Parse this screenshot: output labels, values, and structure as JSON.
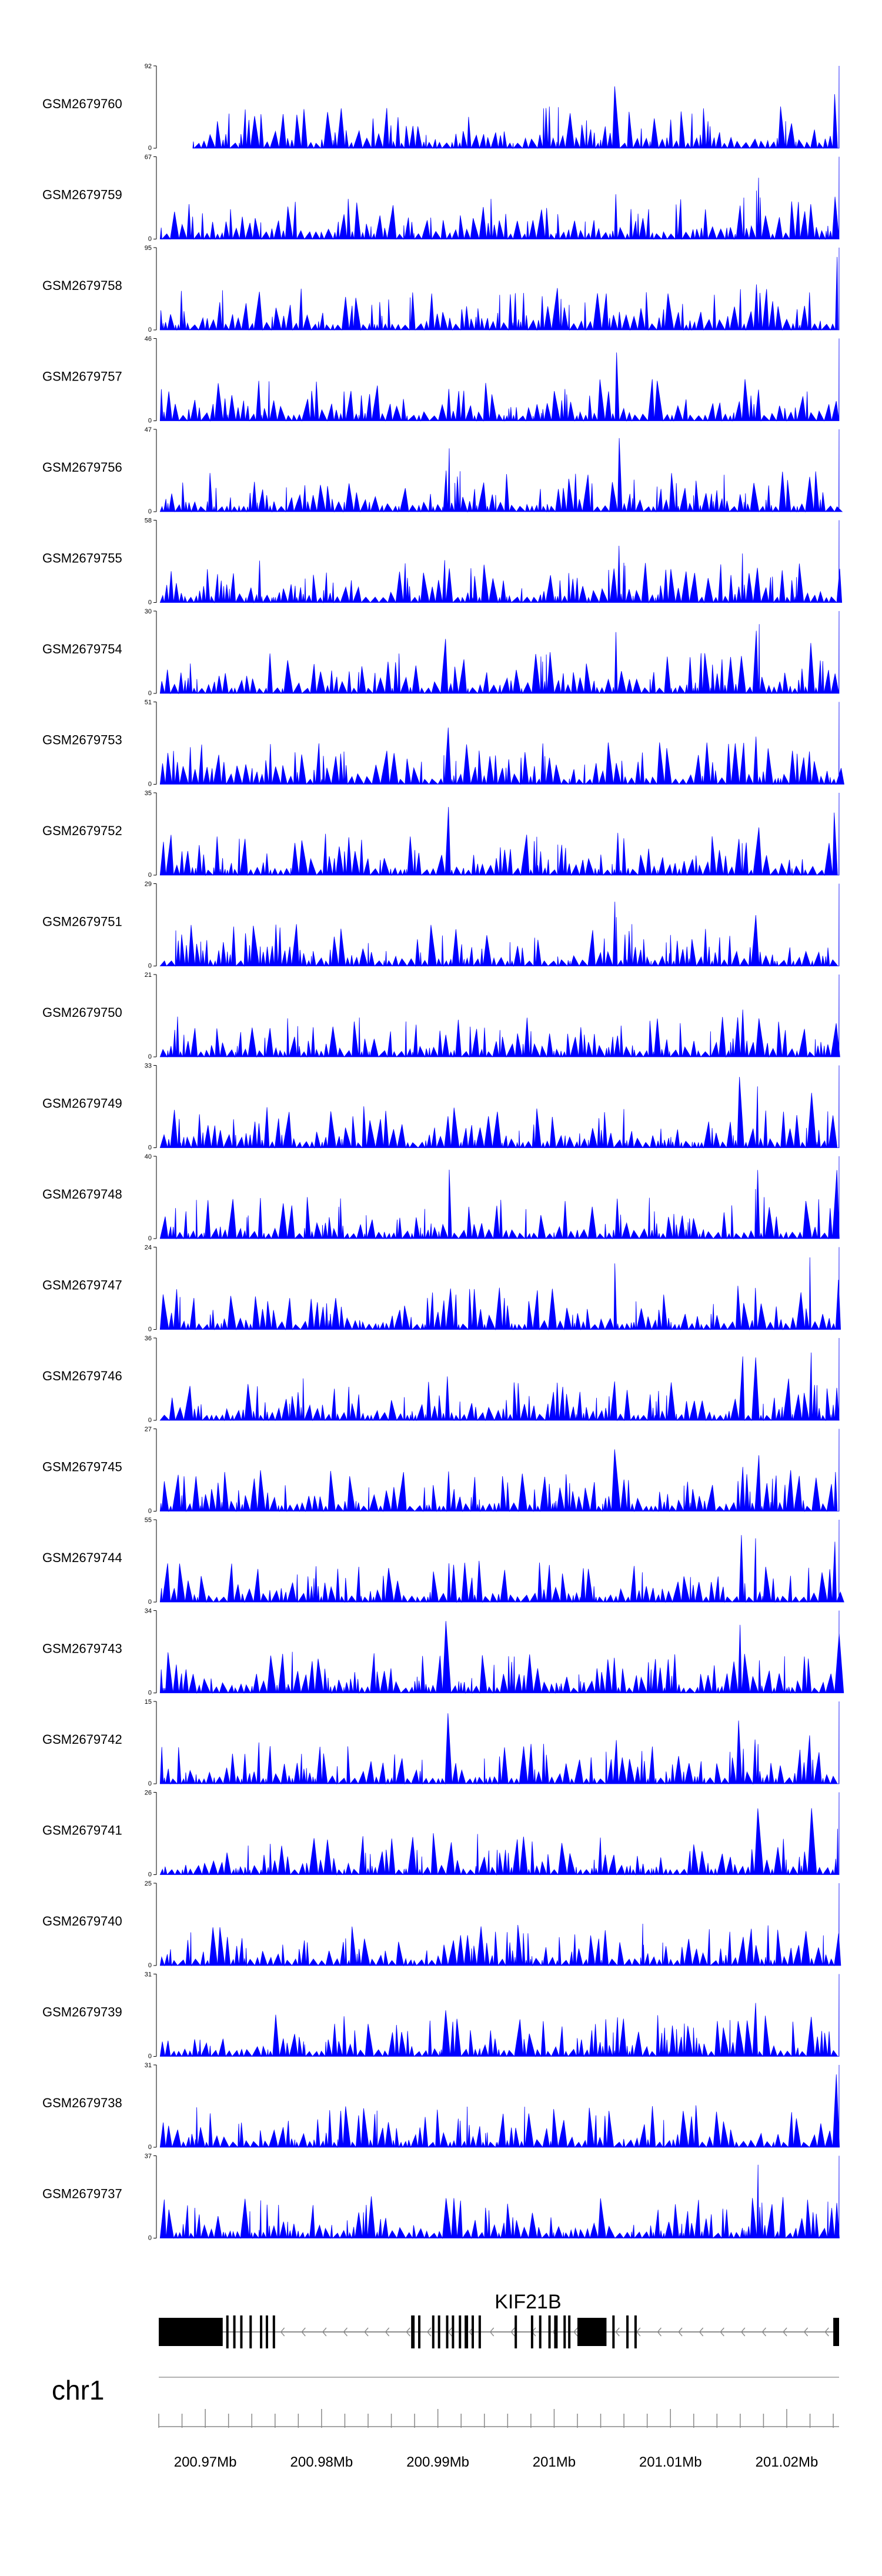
{
  "chart_data": {
    "type": "area",
    "title": "",
    "region": {
      "chromosome": "chr1",
      "start_mb": 200.966,
      "end_mb": 201.0245
    },
    "x_axis": {
      "ticks": [
        {
          "value": 200.97,
          "label": "200.97Mb"
        },
        {
          "value": 200.98,
          "label": "200.98Mb"
        },
        {
          "value": 200.99,
          "label": "200.99Mb"
        },
        {
          "value": 201.0,
          "label": "201Mb"
        },
        {
          "value": 201.01,
          "label": "201.01Mb"
        },
        {
          "value": 201.02,
          "label": "201.02Mb"
        }
      ],
      "minor_step_mb": 0.002
    },
    "fill_color": "#0000ff",
    "tracks": [
      {
        "name": "GSM2679760",
        "ymax": 92,
        "ymin_label": "0"
      },
      {
        "name": "GSM2679759",
        "ymax": 67,
        "ymin_label": "0"
      },
      {
        "name": "GSM2679758",
        "ymax": 95,
        "ymin_label": "0"
      },
      {
        "name": "GSM2679757",
        "ymax": 46,
        "ymin_label": "0"
      },
      {
        "name": "GSM2679756",
        "ymax": 47,
        "ymin_label": "0"
      },
      {
        "name": "GSM2679755",
        "ymax": 58,
        "ymin_label": "0"
      },
      {
        "name": "GSM2679754",
        "ymax": 30,
        "ymin_label": "0"
      },
      {
        "name": "GSM2679753",
        "ymax": 51,
        "ymin_label": "0"
      },
      {
        "name": "GSM2679752",
        "ymax": 35,
        "ymin_label": "0"
      },
      {
        "name": "GSM2679751",
        "ymax": 29,
        "ymin_label": "0"
      },
      {
        "name": "GSM2679750",
        "ymax": 21,
        "ymin_label": "0"
      },
      {
        "name": "GSM2679749",
        "ymax": 33,
        "ymin_label": "0"
      },
      {
        "name": "GSM2679748",
        "ymax": 40,
        "ymin_label": "0"
      },
      {
        "name": "GSM2679747",
        "ymax": 24,
        "ymin_label": "0"
      },
      {
        "name": "GSM2679746",
        "ymax": 36,
        "ymin_label": "0"
      },
      {
        "name": "GSM2679745",
        "ymax": 27,
        "ymin_label": "0"
      },
      {
        "name": "GSM2679744",
        "ymax": 55,
        "ymin_label": "0"
      },
      {
        "name": "GSM2679743",
        "ymax": 34,
        "ymin_label": "0"
      },
      {
        "name": "GSM2679742",
        "ymax": 15,
        "ymin_label": "0"
      },
      {
        "name": "GSM2679741",
        "ymax": 26,
        "ymin_label": "0"
      },
      {
        "name": "GSM2679740",
        "ymax": 25,
        "ymin_label": "0"
      },
      {
        "name": "GSM2679739",
        "ymax": 31,
        "ymin_label": "0"
      },
      {
        "name": "GSM2679738",
        "ymax": 31,
        "ymin_label": "0"
      },
      {
        "name": "GSM2679737",
        "ymax": 37,
        "ymin_label": "0"
      }
    ],
    "gene": {
      "name": "KIF21B",
      "strand": "-",
      "start_mb": 200.966,
      "end_mb": 201.0245,
      "exons": [
        {
          "start": 200.966,
          "end": 200.9715,
          "thick": true
        },
        {
          "start": 200.9718,
          "end": 200.972,
          "thick": false
        },
        {
          "start": 200.9724,
          "end": 200.9726,
          "thick": false
        },
        {
          "start": 200.973,
          "end": 200.9732,
          "thick": false
        },
        {
          "start": 200.9738,
          "end": 200.974,
          "thick": false
        },
        {
          "start": 200.9747,
          "end": 200.9749,
          "thick": false
        },
        {
          "start": 200.9752,
          "end": 200.9754,
          "thick": false
        },
        {
          "start": 200.9758,
          "end": 200.976,
          "thick": false
        },
        {
          "start": 200.9877,
          "end": 200.988,
          "thick": false
        },
        {
          "start": 200.9883,
          "end": 200.9885,
          "thick": false
        },
        {
          "start": 200.9895,
          "end": 200.9897,
          "thick": false
        },
        {
          "start": 200.99,
          "end": 200.9902,
          "thick": false
        },
        {
          "start": 200.9907,
          "end": 200.9909,
          "thick": false
        },
        {
          "start": 200.9912,
          "end": 200.9914,
          "thick": false
        },
        {
          "start": 200.9918,
          "end": 200.992,
          "thick": false
        },
        {
          "start": 200.9923,
          "end": 200.9926,
          "thick": false
        },
        {
          "start": 200.9929,
          "end": 200.9931,
          "thick": false
        },
        {
          "start": 200.9935,
          "end": 200.9937,
          "thick": false
        },
        {
          "start": 200.9966,
          "end": 200.9968,
          "thick": false
        },
        {
          "start": 200.998,
          "end": 200.9982,
          "thick": false
        },
        {
          "start": 200.9987,
          "end": 200.9989,
          "thick": false
        },
        {
          "start": 200.9995,
          "end": 200.9997,
          "thick": false
        },
        {
          "start": 201.0,
          "end": 201.0003,
          "thick": false
        },
        {
          "start": 201.0008,
          "end": 201.001,
          "thick": false
        },
        {
          "start": 201.0012,
          "end": 201.0014,
          "thick": false
        },
        {
          "start": 201.002,
          "end": 201.0045,
          "thick": true
        },
        {
          "start": 201.005,
          "end": 201.0052,
          "thick": false
        },
        {
          "start": 201.0062,
          "end": 201.0064,
          "thick": false
        },
        {
          "start": 201.0069,
          "end": 201.0071,
          "thick": false
        },
        {
          "start": 201.024,
          "end": 201.0245,
          "thick": true
        }
      ]
    }
  }
}
